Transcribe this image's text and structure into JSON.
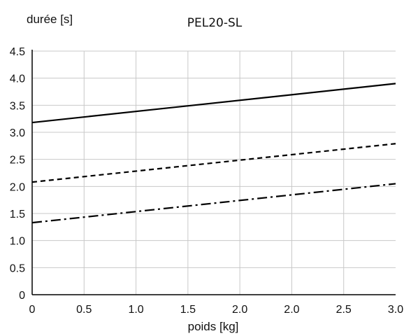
{
  "chart_data": {
    "type": "line",
    "title": "PEL20-SL",
    "ylabel": "durée [s]",
    "xlabel": "poids [kg]",
    "x_ticks": [
      "0",
      "0.5",
      "1.0",
      "1.5",
      "2.0",
      "2.0",
      "2.5",
      "3.0"
    ],
    "y_ticks": [
      "0",
      "0.5",
      "1.0",
      "1.5",
      "2.0",
      "2.5",
      "3.0",
      "3.5",
      "4.0",
      "4.5"
    ],
    "xlim": [
      0,
      3
    ],
    "ylim": [
      0,
      4.5
    ],
    "grid": true,
    "legend": "none",
    "series": [
      {
        "style": "solid",
        "x": [
          0,
          3
        ],
        "y": [
          3.18,
          3.9
        ]
      },
      {
        "style": "dashed",
        "x": [
          0,
          3
        ],
        "y": [
          2.08,
          2.79
        ]
      },
      {
        "style": "dash-dot",
        "x": [
          0,
          3
        ],
        "y": [
          1.33,
          2.05
        ]
      }
    ],
    "colors": {
      "line": "#000000",
      "grid": "#c8c8c8",
      "axis": "#000000"
    }
  }
}
